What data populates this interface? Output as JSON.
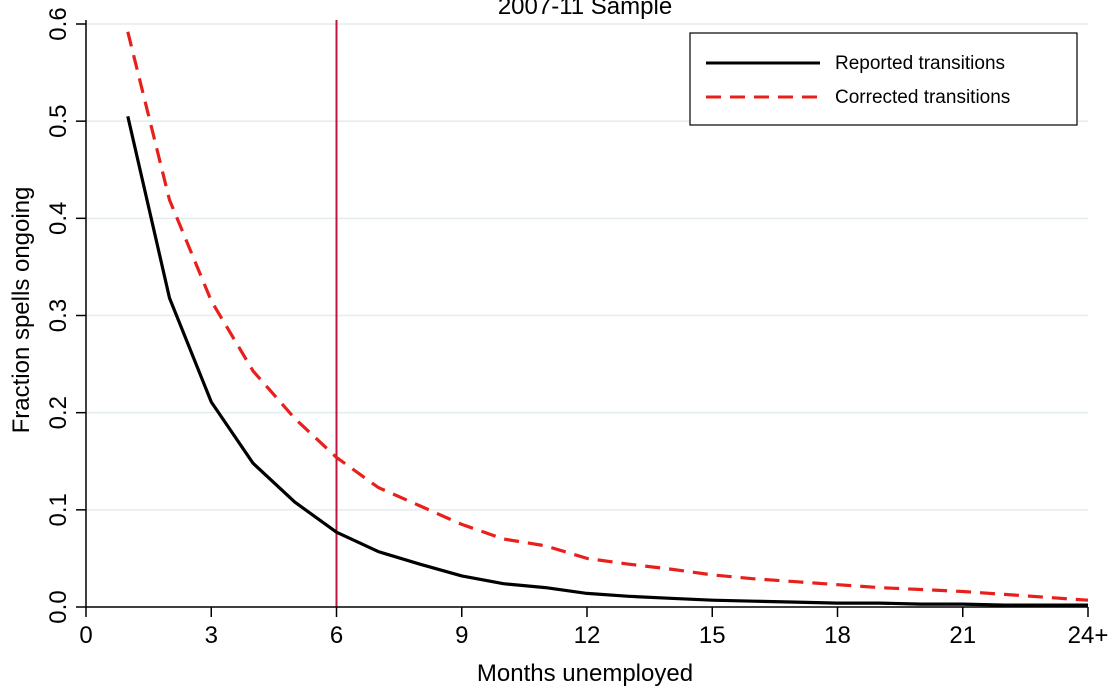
{
  "chart_data": {
    "type": "line",
    "title": "2007-11 Sample",
    "xlabel": "Months unemployed",
    "ylabel": "Fraction spells ongoing",
    "xlim": [
      0,
      24
    ],
    "ylim": [
      0,
      0.6
    ],
    "x_ticks": [
      {
        "value": 0,
        "label": "0"
      },
      {
        "value": 3,
        "label": "3"
      },
      {
        "value": 6,
        "label": "6"
      },
      {
        "value": 9,
        "label": "9"
      },
      {
        "value": 12,
        "label": "12"
      },
      {
        "value": 15,
        "label": "15"
      },
      {
        "value": 18,
        "label": "18"
      },
      {
        "value": 21,
        "label": "21"
      },
      {
        "value": 24,
        "label": "24+"
      }
    ],
    "y_ticks": [
      {
        "value": 0,
        "label": "0.0"
      },
      {
        "value": 0.1,
        "label": "0.1"
      },
      {
        "value": 0.2,
        "label": "0.2"
      },
      {
        "value": 0.3,
        "label": "0.3"
      },
      {
        "value": 0.4,
        "label": "0.4"
      },
      {
        "value": 0.5,
        "label": "0.5"
      },
      {
        "value": 0.6,
        "label": "0.6"
      }
    ],
    "grid": "horizontal",
    "legend_position": "top-right",
    "reference_line_x": 6,
    "reference_line_color": "#c0143c",
    "x": [
      1,
      2,
      3,
      4,
      5,
      6,
      7,
      8,
      9,
      10,
      11,
      12,
      13,
      14,
      15,
      16,
      17,
      18,
      19,
      20,
      21,
      22,
      23,
      24
    ],
    "series": [
      {
        "name": "Reported transitions",
        "color": "#000000",
        "style": "solid",
        "values": [
          0.505,
          0.318,
          0.211,
          0.148,
          0.108,
          0.077,
          0.057,
          0.044,
          0.032,
          0.024,
          0.02,
          0.014,
          0.011,
          0.009,
          0.007,
          0.006,
          0.005,
          0.004,
          0.004,
          0.003,
          0.003,
          0.002,
          0.002,
          0.002
        ]
      },
      {
        "name": "Corrected transitions",
        "color": "#e8201c",
        "style": "dashed",
        "values": [
          0.592,
          0.419,
          0.315,
          0.243,
          0.194,
          0.154,
          0.123,
          0.104,
          0.085,
          0.07,
          0.063,
          0.05,
          0.044,
          0.039,
          0.033,
          0.029,
          0.026,
          0.023,
          0.02,
          0.018,
          0.016,
          0.013,
          0.01,
          0.007
        ]
      }
    ]
  }
}
